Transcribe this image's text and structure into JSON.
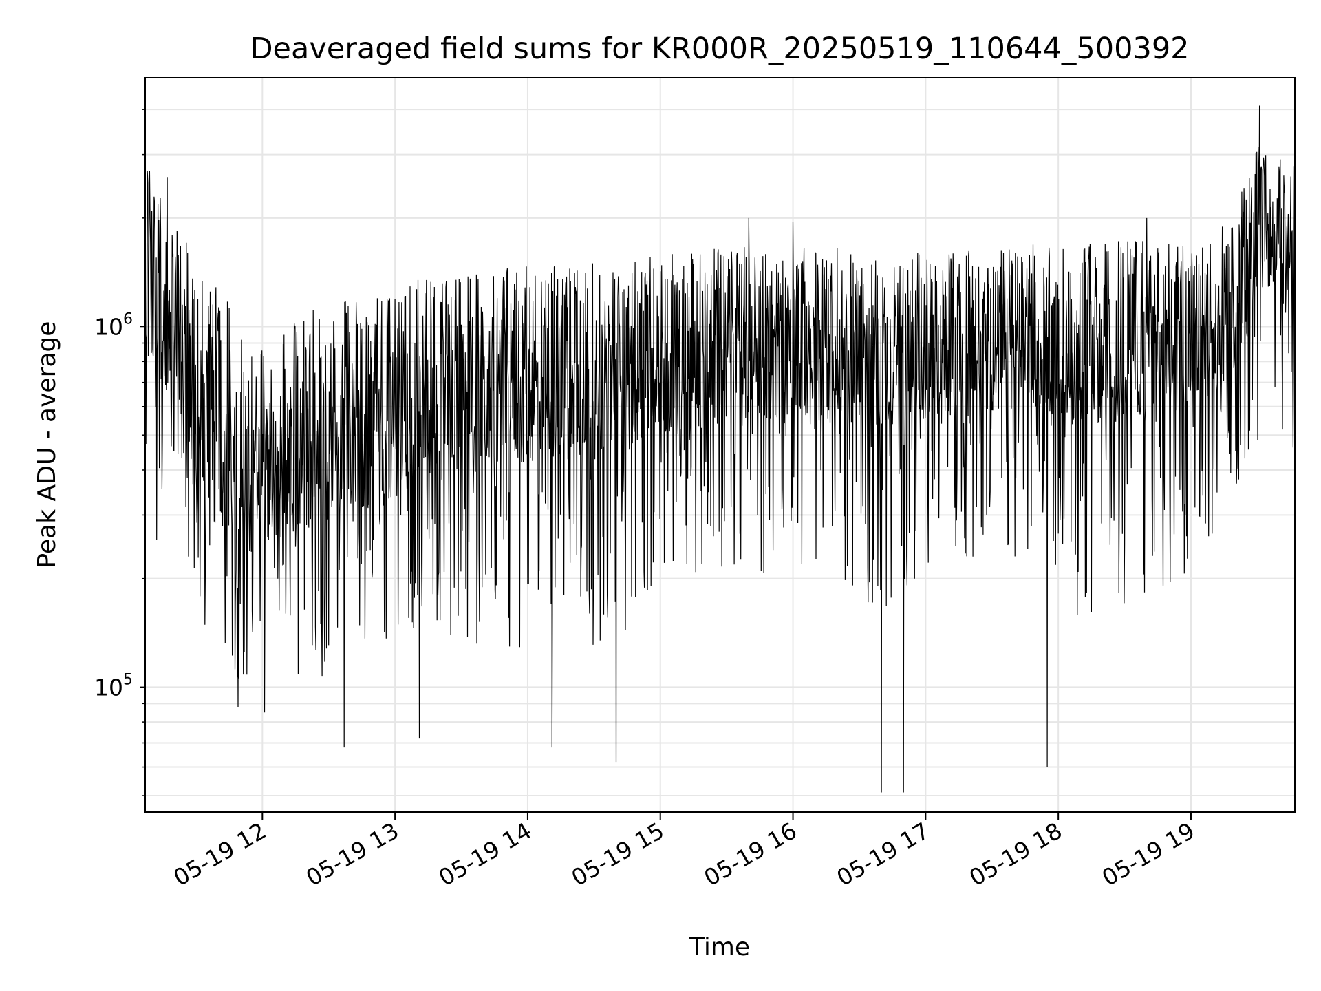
{
  "chart_data": {
    "type": "line",
    "title": "Deaveraged field sums for KR000R_20250519_110644_500392",
    "xlabel": "Time",
    "ylabel": "Peak ADU - average",
    "yscale": "log",
    "ylim": [
      45000,
      4900000
    ],
    "xlim": [
      "2025-05-19 11:07",
      "2025-05-19 19:47"
    ],
    "x_ticks": [
      {
        "value": "2025-05-19 12:00",
        "label": "05-19 12"
      },
      {
        "value": "2025-05-19 13:00",
        "label": "05-19 13"
      },
      {
        "value": "2025-05-19 14:00",
        "label": "05-19 14"
      },
      {
        "value": "2025-05-19 15:00",
        "label": "05-19 15"
      },
      {
        "value": "2025-05-19 16:00",
        "label": "05-19 16"
      },
      {
        "value": "2025-05-19 17:00",
        "label": "05-19 17"
      },
      {
        "value": "2025-05-19 18:00",
        "label": "05-19 18"
      },
      {
        "value": "2025-05-19 19:00",
        "label": "05-19 19"
      }
    ],
    "y_ticks": [
      {
        "value": 100000,
        "base": "10",
        "exp": "5"
      },
      {
        "value": 1000000,
        "base": "10",
        "exp": "6"
      }
    ],
    "grid": true,
    "line_color": "#000000",
    "grid_color": "#e6e6e6",
    "series": [
      {
        "x": [
          "2025-05-19 11:07",
          "2025-05-19 11:12",
          "2025-05-19 11:20",
          "2025-05-19 11:30",
          "2025-05-19 11:40",
          "2025-05-19 11:50",
          "2025-05-19 12:00",
          "2025-05-19 12:10",
          "2025-05-19 12:20",
          "2025-05-19 12:30",
          "2025-05-19 12:40",
          "2025-05-19 12:50",
          "2025-05-19 13:00",
          "2025-05-19 13:10",
          "2025-05-19 13:20",
          "2025-05-19 13:30",
          "2025-05-19 13:40",
          "2025-05-19 13:50",
          "2025-05-19 14:00",
          "2025-05-19 14:10",
          "2025-05-19 14:20",
          "2025-05-19 14:30",
          "2025-05-19 14:40",
          "2025-05-19 14:50",
          "2025-05-19 15:00",
          "2025-05-19 15:10",
          "2025-05-19 15:20",
          "2025-05-19 15:30",
          "2025-05-19 15:40",
          "2025-05-19 15:50",
          "2025-05-19 16:00",
          "2025-05-19 16:10",
          "2025-05-19 16:20",
          "2025-05-19 16:30",
          "2025-05-19 16:40",
          "2025-05-19 16:50",
          "2025-05-19 17:00",
          "2025-05-19 17:10",
          "2025-05-19 17:20",
          "2025-05-19 17:30",
          "2025-05-19 17:40",
          "2025-05-19 17:50",
          "2025-05-19 18:00",
          "2025-05-19 18:10",
          "2025-05-19 18:20",
          "2025-05-19 18:30",
          "2025-05-19 18:40",
          "2025-05-19 18:50",
          "2025-05-19 19:00",
          "2025-05-19 19:10",
          "2025-05-19 19:20",
          "2025-05-19 19:30",
          "2025-05-19 19:40",
          "2025-05-19 19:47"
        ],
        "low": [
          500000,
          250000,
          450000,
          150000,
          110000,
          100000,
          110000,
          120000,
          100000,
          110000,
          140000,
          120000,
          110000,
          150000,
          120000,
          110000,
          130000,
          120000,
          120000,
          150000,
          140000,
          130000,
          120000,
          140000,
          180000,
          220000,
          200000,
          190000,
          220000,
          200000,
          200000,
          220000,
          210000,
          150000,
          120000,
          180000,
          220000,
          230000,
          200000,
          200000,
          230000,
          210000,
          200000,
          150000,
          140000,
          150000,
          170000,
          160000,
          190000,
          230000,
          300000,
          400000,
          380000,
          450000
        ],
        "high": [
          2800000,
          2400000,
          1900000,
          1600000,
          1300000,
          1100000,
          1000000,
          1000000,
          1100000,
          1150000,
          1200000,
          1250000,
          1300000,
          1350000,
          1400000,
          1400000,
          1450000,
          1450000,
          1500000,
          1500000,
          1500000,
          1500000,
          1500000,
          1550000,
          1600000,
          1600000,
          1650000,
          1650000,
          1700000,
          1700000,
          1700000,
          1650000,
          1650000,
          1600000,
          1600000,
          1600000,
          1600000,
          1600000,
          1650000,
          1650000,
          1650000,
          1700000,
          1700000,
          1700000,
          1700000,
          1750000,
          1750000,
          1700000,
          1700000,
          1750000,
          2200000,
          3300000,
          3200000,
          2800000
        ],
        "mid": [
          1300000,
          1150000,
          900000,
          650000,
          420000,
          380000,
          400000,
          420000,
          450000,
          470000,
          500000,
          520000,
          540000,
          560000,
          580000,
          600000,
          620000,
          640000,
          650000,
          660000,
          670000,
          680000,
          700000,
          720000,
          740000,
          760000,
          780000,
          790000,
          800000,
          820000,
          820000,
          810000,
          800000,
          780000,
          770000,
          780000,
          790000,
          800000,
          810000,
          820000,
          830000,
          840000,
          840000,
          820000,
          800000,
          820000,
          850000,
          860000,
          880000,
          920000,
          1100000,
          1700000,
          1800000,
          1600000
        ]
      }
    ],
    "notable_points": [
      {
        "x": "2025-05-19 11:09",
        "y": 2700000
      },
      {
        "x": "2025-05-19 11:17",
        "y": 2600000
      },
      {
        "x": "2025-05-19 11:49",
        "y": 88000
      },
      {
        "x": "2025-05-19 12:01",
        "y": 85000
      },
      {
        "x": "2025-05-19 12:37",
        "y": 68000
      },
      {
        "x": "2025-05-19 13:11",
        "y": 72000
      },
      {
        "x": "2025-05-19 14:11",
        "y": 68000
      },
      {
        "x": "2025-05-19 14:40",
        "y": 62000
      },
      {
        "x": "2025-05-19 15:40",
        "y": 2000000
      },
      {
        "x": "2025-05-19 16:00",
        "y": 1950000
      },
      {
        "x": "2025-05-19 16:40",
        "y": 51000
      },
      {
        "x": "2025-05-19 16:50",
        "y": 51000
      },
      {
        "x": "2025-05-19 17:55",
        "y": 60000
      },
      {
        "x": "2025-05-19 18:40",
        "y": 2000000
      },
      {
        "x": "2025-05-19 19:31",
        "y": 4100000
      }
    ]
  }
}
